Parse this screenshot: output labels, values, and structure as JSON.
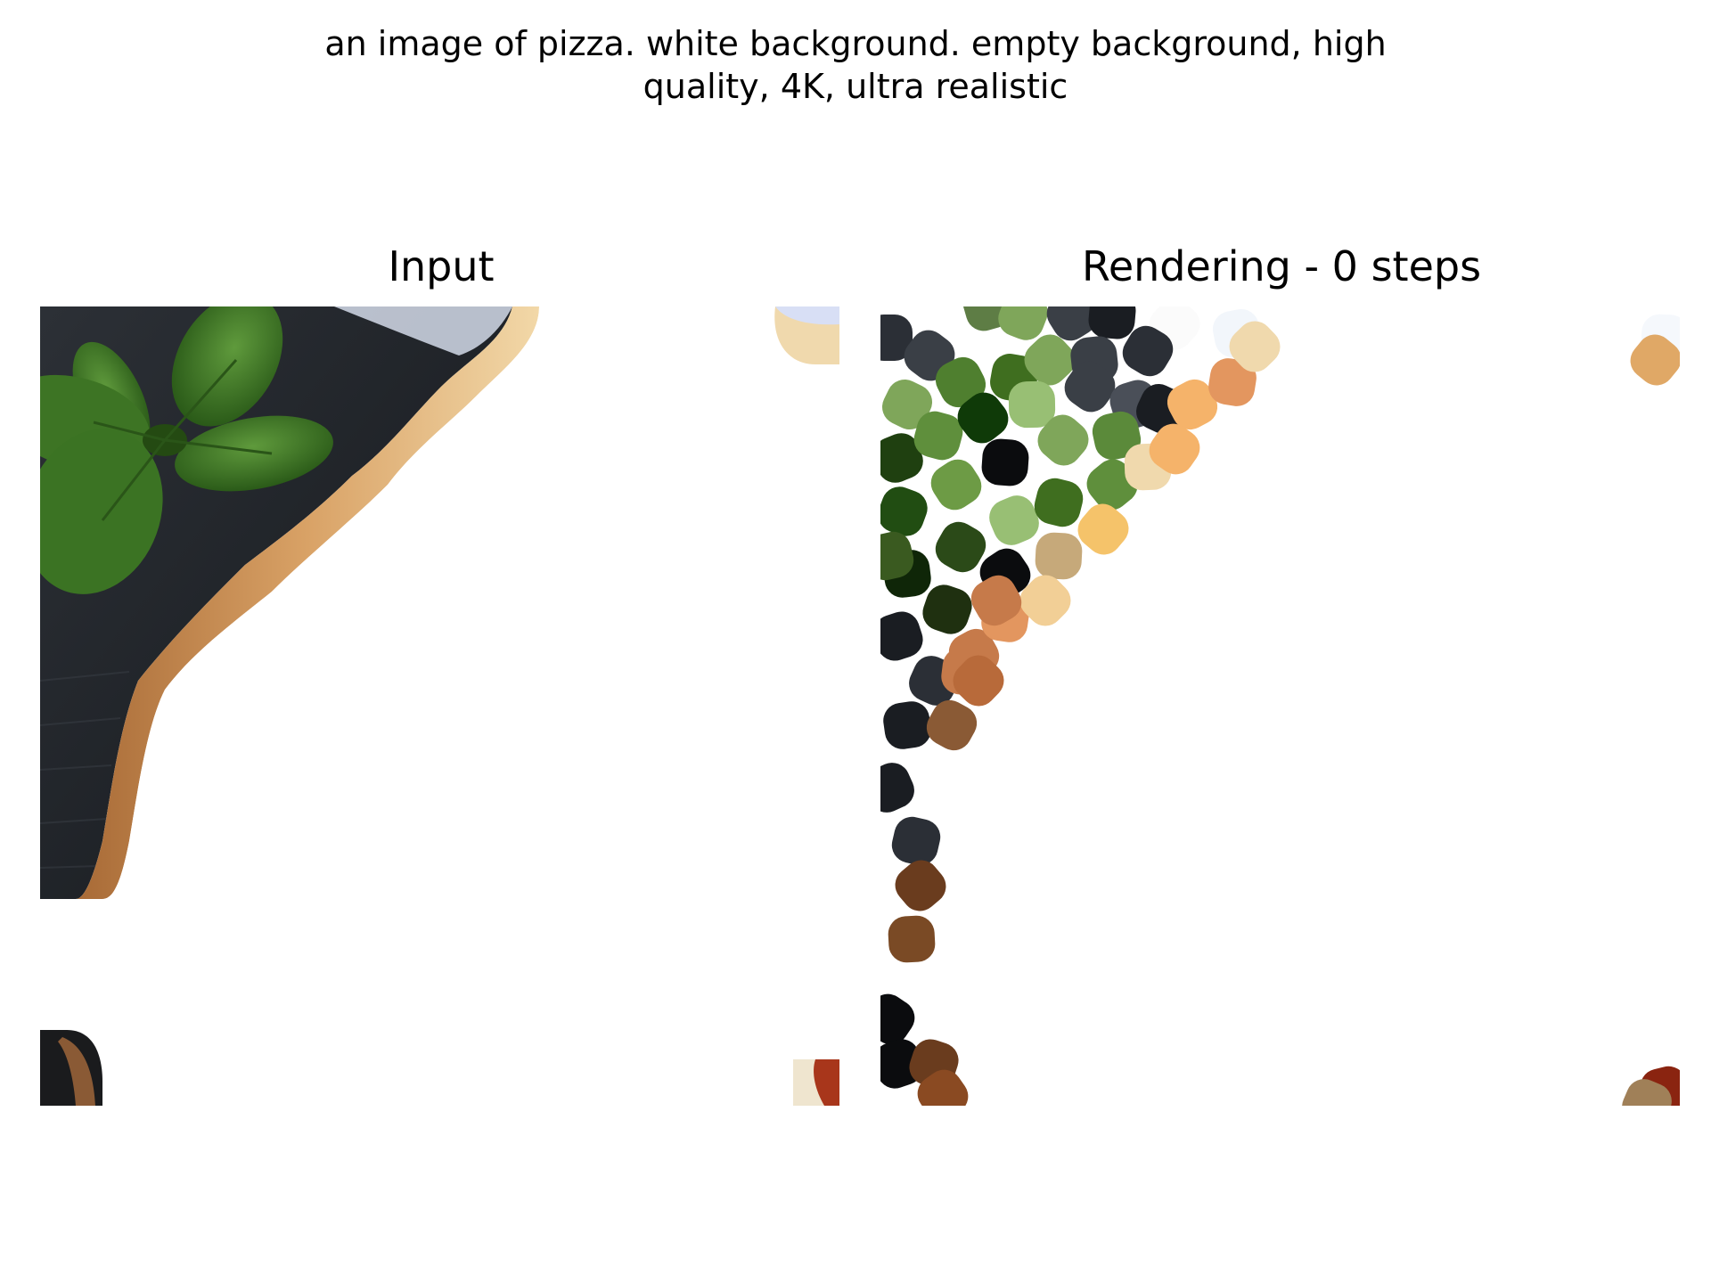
{
  "figure": {
    "suptitle_line1": "an image of pizza. white background. empty background, high",
    "suptitle_line2": "quality, 4K, ultra realistic"
  },
  "panels": {
    "input": {
      "title": "Input"
    },
    "rendering": {
      "title": "Rendering - 0 steps"
    }
  },
  "colors": {
    "board": "#23272d",
    "basil": "#3f7a2a",
    "crust": "#c88f57",
    "crust_light": "#f1d6a4",
    "sauce": "#8a2410",
    "brush_palette": [
      "#2b2f36",
      "#3f6e1f",
      "#7fa65a",
      "#98bf74",
      "#f5b36a",
      "#e3965f",
      "#c67a4a",
      "#6a3c1e",
      "#0b0c0e",
      "#f0d9ad"
    ]
  }
}
